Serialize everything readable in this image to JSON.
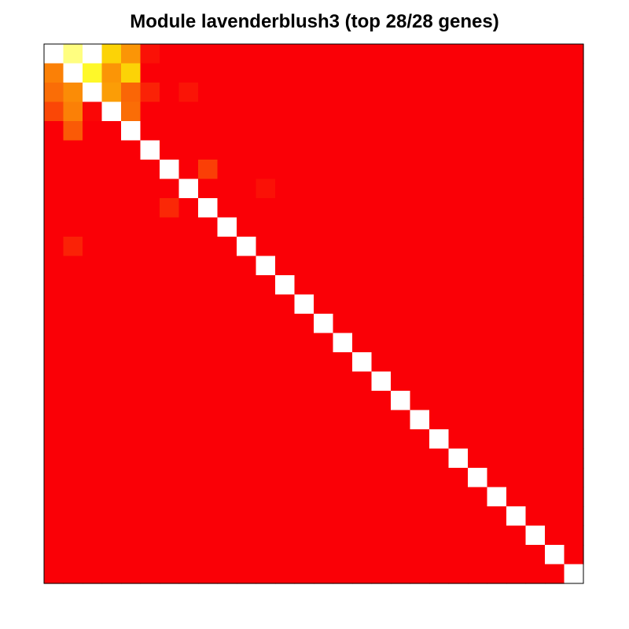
{
  "chart_data": {
    "type": "heatmap",
    "title": "Module lavenderblush3 (top 28/28 genes)",
    "n": 28,
    "colors": {
      "low": "#fa0006",
      "high": "#ffffff",
      "scale": [
        "#fa0006",
        "#fa2a06",
        "#fa5a06",
        "#fb8a06",
        "#fcc006",
        "#fdf006",
        "#fefe40",
        "#fffe90",
        "#ffffff"
      ]
    },
    "diagonal": 1.0,
    "baseline": 0.0,
    "cells": [
      {
        "row": 0,
        "col": 1,
        "value": 0.85
      },
      {
        "row": 0,
        "col": 2,
        "value": 1.0
      },
      {
        "row": 0,
        "col": 3,
        "value": 0.55
      },
      {
        "row": 0,
        "col": 4,
        "value": 0.4
      },
      {
        "row": 0,
        "col": 5,
        "value": 0.05
      },
      {
        "row": 1,
        "col": 0,
        "value": 0.35
      },
      {
        "row": 1,
        "col": 2,
        "value": 0.7
      },
      {
        "row": 1,
        "col": 3,
        "value": 0.4
      },
      {
        "row": 1,
        "col": 4,
        "value": 0.55
      },
      {
        "row": 2,
        "col": 0,
        "value": 0.3
      },
      {
        "row": 2,
        "col": 1,
        "value": 0.38
      },
      {
        "row": 2,
        "col": 3,
        "value": 0.42
      },
      {
        "row": 2,
        "col": 4,
        "value": 0.28
      },
      {
        "row": 2,
        "col": 5,
        "value": 0.1
      },
      {
        "row": 2,
        "col": 7,
        "value": 0.06
      },
      {
        "row": 3,
        "col": 0,
        "value": 0.2
      },
      {
        "row": 3,
        "col": 1,
        "value": 0.35
      },
      {
        "row": 3,
        "col": 2,
        "value": 0.02
      },
      {
        "row": 3,
        "col": 4,
        "value": 0.3
      },
      {
        "row": 4,
        "col": 1,
        "value": 0.25
      },
      {
        "row": 6,
        "col": 8,
        "value": 0.18
      },
      {
        "row": 7,
        "col": 11,
        "value": 0.05
      },
      {
        "row": 8,
        "col": 6,
        "value": 0.12
      },
      {
        "row": 10,
        "col": 1,
        "value": 0.1
      }
    ]
  }
}
